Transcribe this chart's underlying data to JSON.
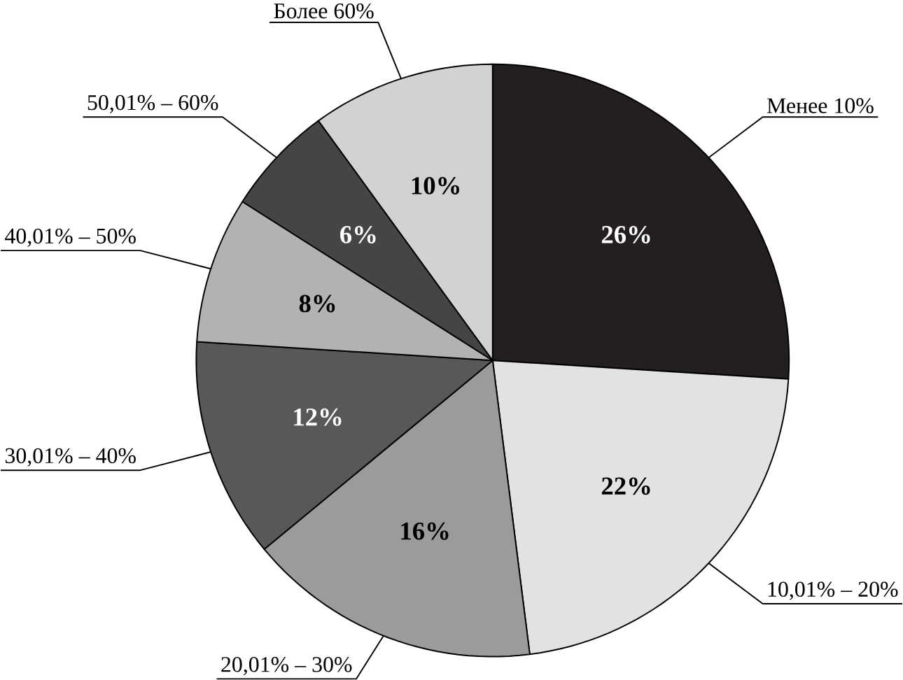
{
  "chart_data": {
    "type": "pie",
    "categories": [
      "Менее 10%",
      "10,01% – 20%",
      "20,01% – 30%",
      "30,01% – 40%",
      "40,01% – 50%",
      "50,01% – 60%",
      "Более 60%"
    ],
    "values": [
      26,
      22,
      16,
      12,
      8,
      6,
      10
    ],
    "value_labels": [
      "26%",
      "22%",
      "16%",
      "12%",
      "8%",
      "6%",
      "10%"
    ],
    "colors": [
      "#231f20",
      "#e2e2e3",
      "#9b9b9c",
      "#58585a",
      "#b2b2b3",
      "#454547",
      "#d2d2d3"
    ]
  }
}
